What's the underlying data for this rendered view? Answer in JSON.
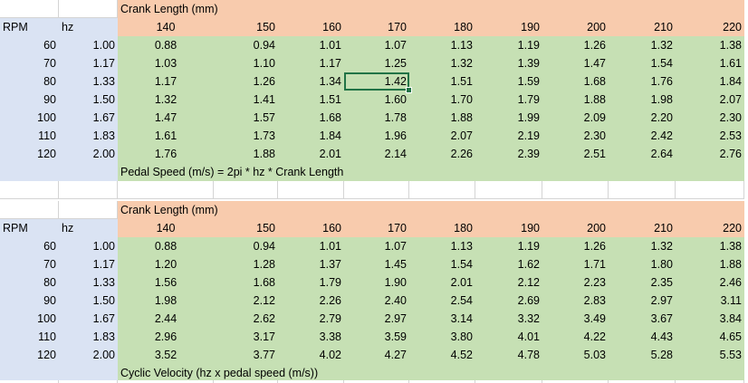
{
  "tables": [
    {
      "top_header": "Crank Length (mm)",
      "rpm_label": "RPM",
      "hz_label": "hz",
      "crank_lengths": [
        "140",
        "150",
        "160",
        "170",
        "180",
        "190",
        "200",
        "210",
        "220"
      ],
      "rows": [
        {
          "rpm": "60",
          "hz": "1.00",
          "values": [
            "0.88",
            "0.94",
            "1.01",
            "1.07",
            "1.13",
            "1.19",
            "1.26",
            "1.32",
            "1.38"
          ]
        },
        {
          "rpm": "70",
          "hz": "1.17",
          "values": [
            "1.03",
            "1.10",
            "1.17",
            "1.25",
            "1.32",
            "1.39",
            "1.47",
            "1.54",
            "1.61"
          ]
        },
        {
          "rpm": "80",
          "hz": "1.33",
          "values": [
            "1.17",
            "1.26",
            "1.34",
            "1.42",
            "1.51",
            "1.59",
            "1.68",
            "1.76",
            "1.84"
          ]
        },
        {
          "rpm": "90",
          "hz": "1.50",
          "values": [
            "1.32",
            "1.41",
            "1.51",
            "1.60",
            "1.70",
            "1.79",
            "1.88",
            "1.98",
            "2.07"
          ]
        },
        {
          "rpm": "100",
          "hz": "1.67",
          "values": [
            "1.47",
            "1.57",
            "1.68",
            "1.78",
            "1.88",
            "1.99",
            "2.09",
            "2.20",
            "2.30"
          ]
        },
        {
          "rpm": "110",
          "hz": "1.83",
          "values": [
            "1.61",
            "1.73",
            "1.84",
            "1.96",
            "2.07",
            "2.19",
            "2.30",
            "2.42",
            "2.53"
          ]
        },
        {
          "rpm": "120",
          "hz": "2.00",
          "values": [
            "1.76",
            "1.88",
            "2.01",
            "2.14",
            "2.26",
            "2.39",
            "2.51",
            "2.64",
            "2.76"
          ]
        }
      ],
      "footer": "Pedal Speed (m/s) = 2pi * hz * Crank Length"
    },
    {
      "top_header": "Crank Length (mm)",
      "rpm_label": "RPM",
      "hz_label": "hz",
      "crank_lengths": [
        "140",
        "150",
        "160",
        "170",
        "180",
        "190",
        "200",
        "210",
        "220"
      ],
      "rows": [
        {
          "rpm": "60",
          "hz": "1.00",
          "values": [
            "0.88",
            "0.94",
            "1.01",
            "1.07",
            "1.13",
            "1.19",
            "1.26",
            "1.32",
            "1.38"
          ]
        },
        {
          "rpm": "70",
          "hz": "1.17",
          "values": [
            "1.20",
            "1.28",
            "1.37",
            "1.45",
            "1.54",
            "1.62",
            "1.71",
            "1.80",
            "1.88"
          ]
        },
        {
          "rpm": "80",
          "hz": "1.33",
          "values": [
            "1.56",
            "1.68",
            "1.79",
            "1.90",
            "2.01",
            "2.12",
            "2.23",
            "2.35",
            "2.46"
          ]
        },
        {
          "rpm": "90",
          "hz": "1.50",
          "values": [
            "1.98",
            "2.12",
            "2.26",
            "2.40",
            "2.54",
            "2.69",
            "2.83",
            "2.97",
            "3.11"
          ]
        },
        {
          "rpm": "100",
          "hz": "1.67",
          "values": [
            "2.44",
            "2.62",
            "2.79",
            "2.97",
            "3.14",
            "3.32",
            "3.49",
            "3.67",
            "3.84"
          ]
        },
        {
          "rpm": "110",
          "hz": "1.83",
          "values": [
            "2.96",
            "3.17",
            "3.38",
            "3.59",
            "3.80",
            "4.01",
            "4.22",
            "4.43",
            "4.65"
          ]
        },
        {
          "rpm": "120",
          "hz": "2.00",
          "values": [
            "3.52",
            "3.77",
            "4.02",
            "4.27",
            "4.52",
            "4.78",
            "5.03",
            "5.28",
            "5.53"
          ]
        }
      ],
      "footer": "Cyclic Velocity (hz x pedal speed (m/s))"
    }
  ],
  "selection": {
    "table": 0,
    "row": 2,
    "col": 3
  },
  "colors": {
    "blue": "#dae3f3",
    "orange": "#f8cbad",
    "green": "#c6e0b4",
    "selection": "#217346"
  }
}
